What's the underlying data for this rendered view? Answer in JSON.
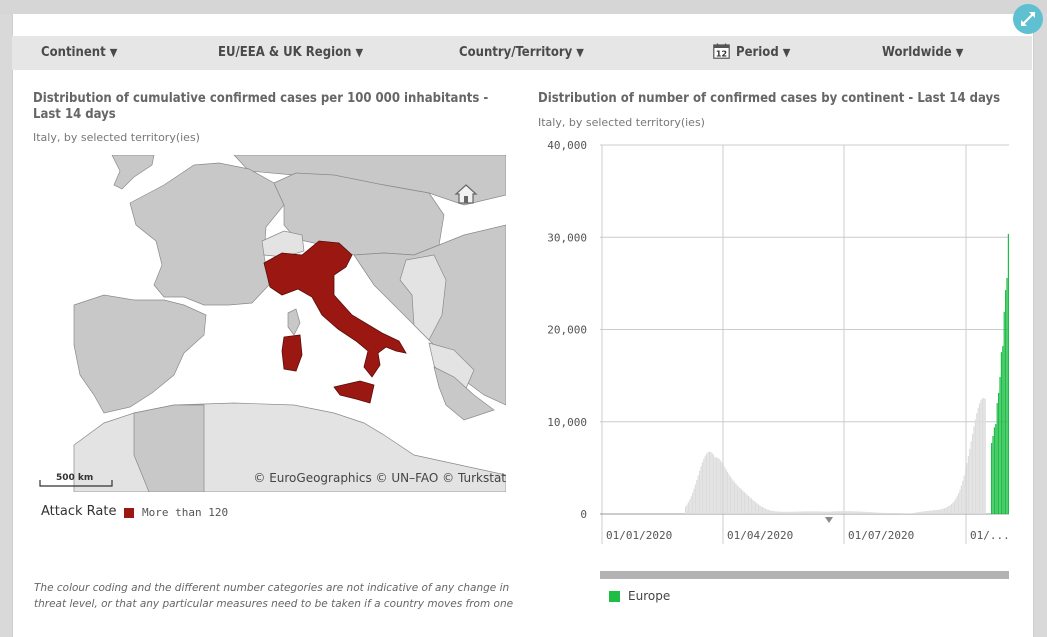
{
  "filters": {
    "continent": "Continent",
    "region": "EU/EEA & UK Region",
    "country": "Country/Territory",
    "period": "Period",
    "worldwide": "Worldwide",
    "calendar_day": "12"
  },
  "map_panel": {
    "title": "Distribution of cumulative confirmed cases per 100 000 inhabitants - Last 14 days",
    "subtitle": "Italy, by selected territory(ies)",
    "scale_label": "500 km",
    "attribution": "© EuroGeographics © UN–FAO © Turkstat",
    "legend_label": "Attack Rate",
    "legend_item": "More than 120",
    "highlight_color": "#9b1712"
  },
  "chart_panel": {
    "title": "Distribution of number of confirmed cases by continent - Last 14 days",
    "subtitle": "Italy, by selected territory(ies)",
    "legend_item": "Europe"
  },
  "footnote": "The colour coding and the different number categories are not indicative of any change in threat level, or that any particular measures need to be taken if a country moves from one",
  "chart_data": {
    "type": "bar",
    "y_ticks": [
      "40,000",
      "30,000",
      "20,000",
      "10,000",
      "0"
    ],
    "x_ticks": [
      "01/01/2020",
      "01/04/2020",
      "01/07/2020",
      "01/..."
    ],
    "ylim": [
      0,
      40000
    ],
    "series": [
      {
        "name": "Europe",
        "color": "#1ebd45",
        "highlighted": true
      },
      {
        "name": "",
        "color": "#dcdcdc",
        "highlighted": false
      }
    ]
  }
}
